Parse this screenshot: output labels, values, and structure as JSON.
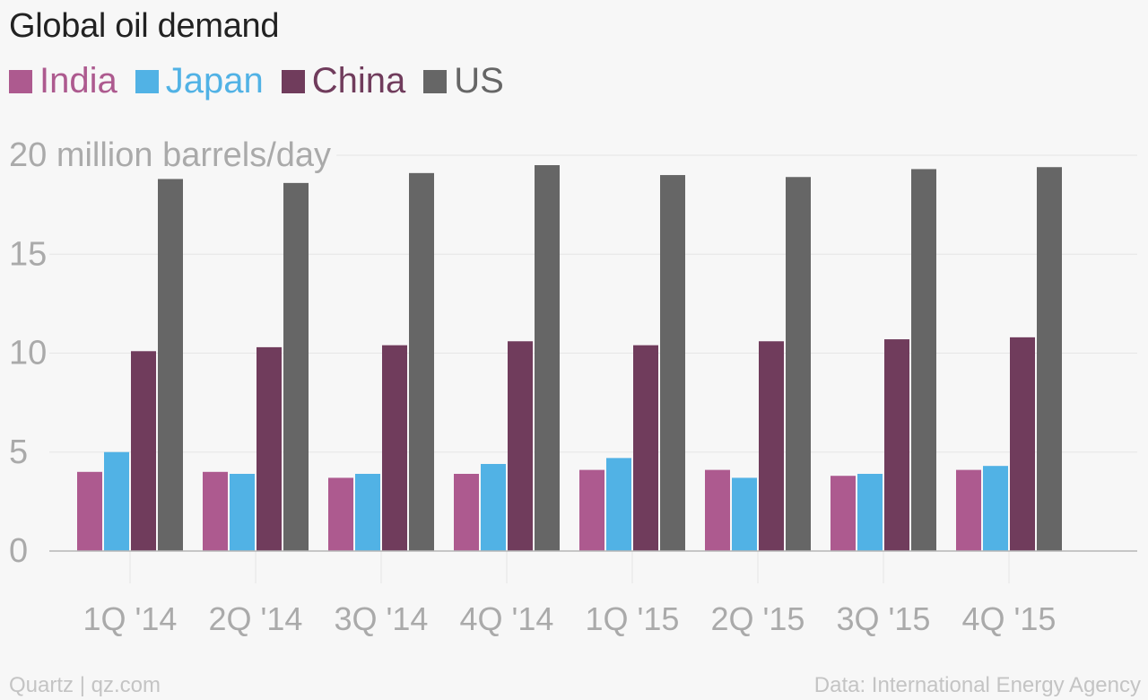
{
  "title": "Global oil demand",
  "legend": [
    {
      "label": "India",
      "color": "#ad5a8f"
    },
    {
      "label": "Japan",
      "color": "#51b2e5"
    },
    {
      "label": "China",
      "color": "#703c5c"
    },
    {
      "label": "US",
      "color": "#666666"
    }
  ],
  "colors": {
    "text_label": "#aaaaaa",
    "grid": "#e6e6e6",
    "axis": "#b5b5b5",
    "background": "#f7f7f7"
  },
  "footer": {
    "source": "Quartz | qz.com",
    "credit": "Data: International Energy Agency"
  },
  "chart_data": {
    "type": "bar",
    "title": "Global oil demand",
    "ylabel": "",
    "xlabel": "",
    "ylim": [
      0,
      20
    ],
    "yticks": [
      0,
      5,
      10,
      15,
      20
    ],
    "ytick_labels": [
      "0",
      "5",
      "10",
      "15",
      "20 million barrels/day"
    ],
    "grid": true,
    "legend_position": "top-left",
    "categories": [
      "1Q '14",
      "2Q '14",
      "3Q '14",
      "4Q '14",
      "1Q '15",
      "2Q '15",
      "3Q '15",
      "4Q '15"
    ],
    "series": [
      {
        "name": "India",
        "color": "#ad5a8f",
        "values": [
          4.0,
          4.0,
          3.7,
          3.9,
          4.1,
          4.1,
          3.8,
          4.1
        ]
      },
      {
        "name": "Japan",
        "color": "#51b2e5",
        "values": [
          5.0,
          3.9,
          3.9,
          4.4,
          4.7,
          3.7,
          3.9,
          4.3
        ]
      },
      {
        "name": "China",
        "color": "#703c5c",
        "values": [
          10.1,
          10.3,
          10.4,
          10.6,
          10.4,
          10.6,
          10.7,
          10.8
        ]
      },
      {
        "name": "US",
        "color": "#666666",
        "values": [
          18.8,
          18.6,
          19.1,
          19.5,
          19.0,
          18.9,
          19.3,
          19.4
        ]
      }
    ]
  }
}
